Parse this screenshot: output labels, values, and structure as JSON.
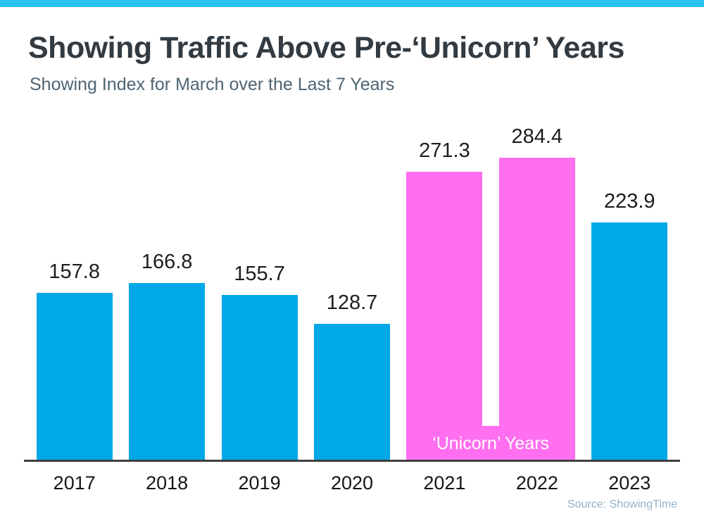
{
  "page": {
    "accent_color": "#29C2F1",
    "background": "#FFFFFF"
  },
  "header": {
    "title": "Showing Traffic Above Pre-‘Unicorn’ Years",
    "subtitle": "Showing Index for March over the Last 7 Years"
  },
  "chart_data": {
    "type": "bar",
    "title": "Showing Traffic Above Pre-‘Unicorn’ Years",
    "subtitle": "Showing Index for March over the Last 7 Years",
    "categories": [
      "2017",
      "2018",
      "2019",
      "2020",
      "2021",
      "2022",
      "2023"
    ],
    "values": [
      157.8,
      166.8,
      155.7,
      128.7,
      271.3,
      284.4,
      223.9
    ],
    "value_labels": [
      "157.8",
      "166.8",
      "155.7",
      "128.7",
      "271.3",
      "284.4",
      "223.9"
    ],
    "bar_colors": [
      "#00A8E8",
      "#00A8E8",
      "#00A8E8",
      "#00A8E8",
      "#FF6FF0",
      "#FF6FF0",
      "#00A8E8"
    ],
    "default_bar_color": "#00A8E8",
    "highlight": {
      "label": "‘Unicorn’ Years",
      "start_category": "2021",
      "end_category": "2022",
      "color": "#FF6FF0",
      "text_color": "#FFFFFF"
    },
    "ylim": [
      0,
      300
    ],
    "grid": false,
    "legend": false,
    "xlabel": "",
    "ylabel": ""
  },
  "footer": {
    "source": "Source: ShowingTime"
  }
}
